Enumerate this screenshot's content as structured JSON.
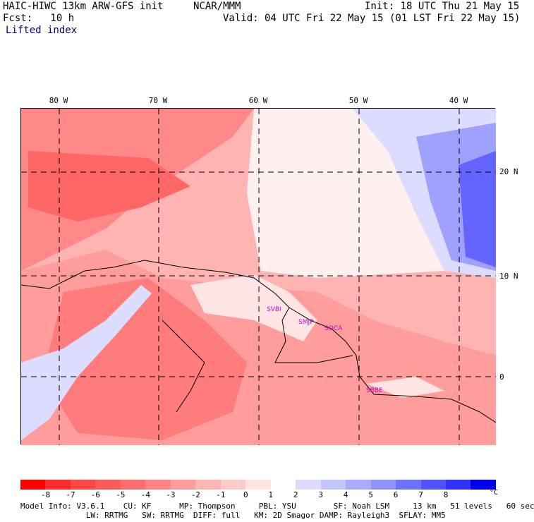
{
  "header": {
    "model": "HAIC-HIWC 13km ARW-GFS init",
    "center": "NCAR/MMM",
    "init": "Init: 18 UTC Thu 21 May 15",
    "fcst": "Fcst:   10 h",
    "valid": "Valid: 04 UTC Fri 22 May 15 (01 LST Fri 22 May 15)",
    "field": "Lifted index"
  },
  "map": {
    "lon_labels": [
      "80 W",
      "70 W",
      "60 W",
      "50 W",
      "40 W"
    ],
    "lat_labels": [
      "20 N",
      "10 N",
      "0"
    ],
    "stations": [
      "SVBI",
      "SMJP",
      "SOCA",
      "SBBE"
    ],
    "colors": {
      "strong_neg": "#ff5555",
      "mid_neg": "#ff8888",
      "weak_neg": "#ffb4b4",
      "faint_neg": "#ffd4d4",
      "neutral": "#fff0f0",
      "weak_pos": "#dcdcff",
      "mid_pos": "#a0a0ff",
      "strong_pos": "#6464ff",
      "station": "#cc00cc"
    }
  },
  "colorbar": {
    "ticks": [
      "-8",
      "-7",
      "-6",
      "-5",
      "-4",
      "-3",
      "-2",
      "-1",
      "0",
      "1",
      "2",
      "3",
      "4",
      "5",
      "6",
      "7",
      "8"
    ],
    "unit": "°C",
    "colors": [
      "#ff0000",
      "#ff2a2a",
      "#ff4545",
      "#ff5a5a",
      "#ff6e6e",
      "#ff8484",
      "#ff9c9c",
      "#ffb4b4",
      "#ffcccc",
      "#ffe4e4",
      "#ffffff",
      "#dcdcff",
      "#c4c4ff",
      "#aaaaff",
      "#9090ff",
      "#7070ff",
      "#5050ff",
      "#3030ff",
      "#0000ee"
    ]
  },
  "footer": {
    "line1": "Model Info: V3.6.1    CU: KF      MP: Thompson     PBL: YSU        SF: Noah LSM     13 km   51 levels   60 sec",
    "line2": "              LW: RRTMG   SW: RRTMG  DIFF: full   KM: 2D Smagor DAMP: Rayleigh3  SFLAY: MM5"
  }
}
